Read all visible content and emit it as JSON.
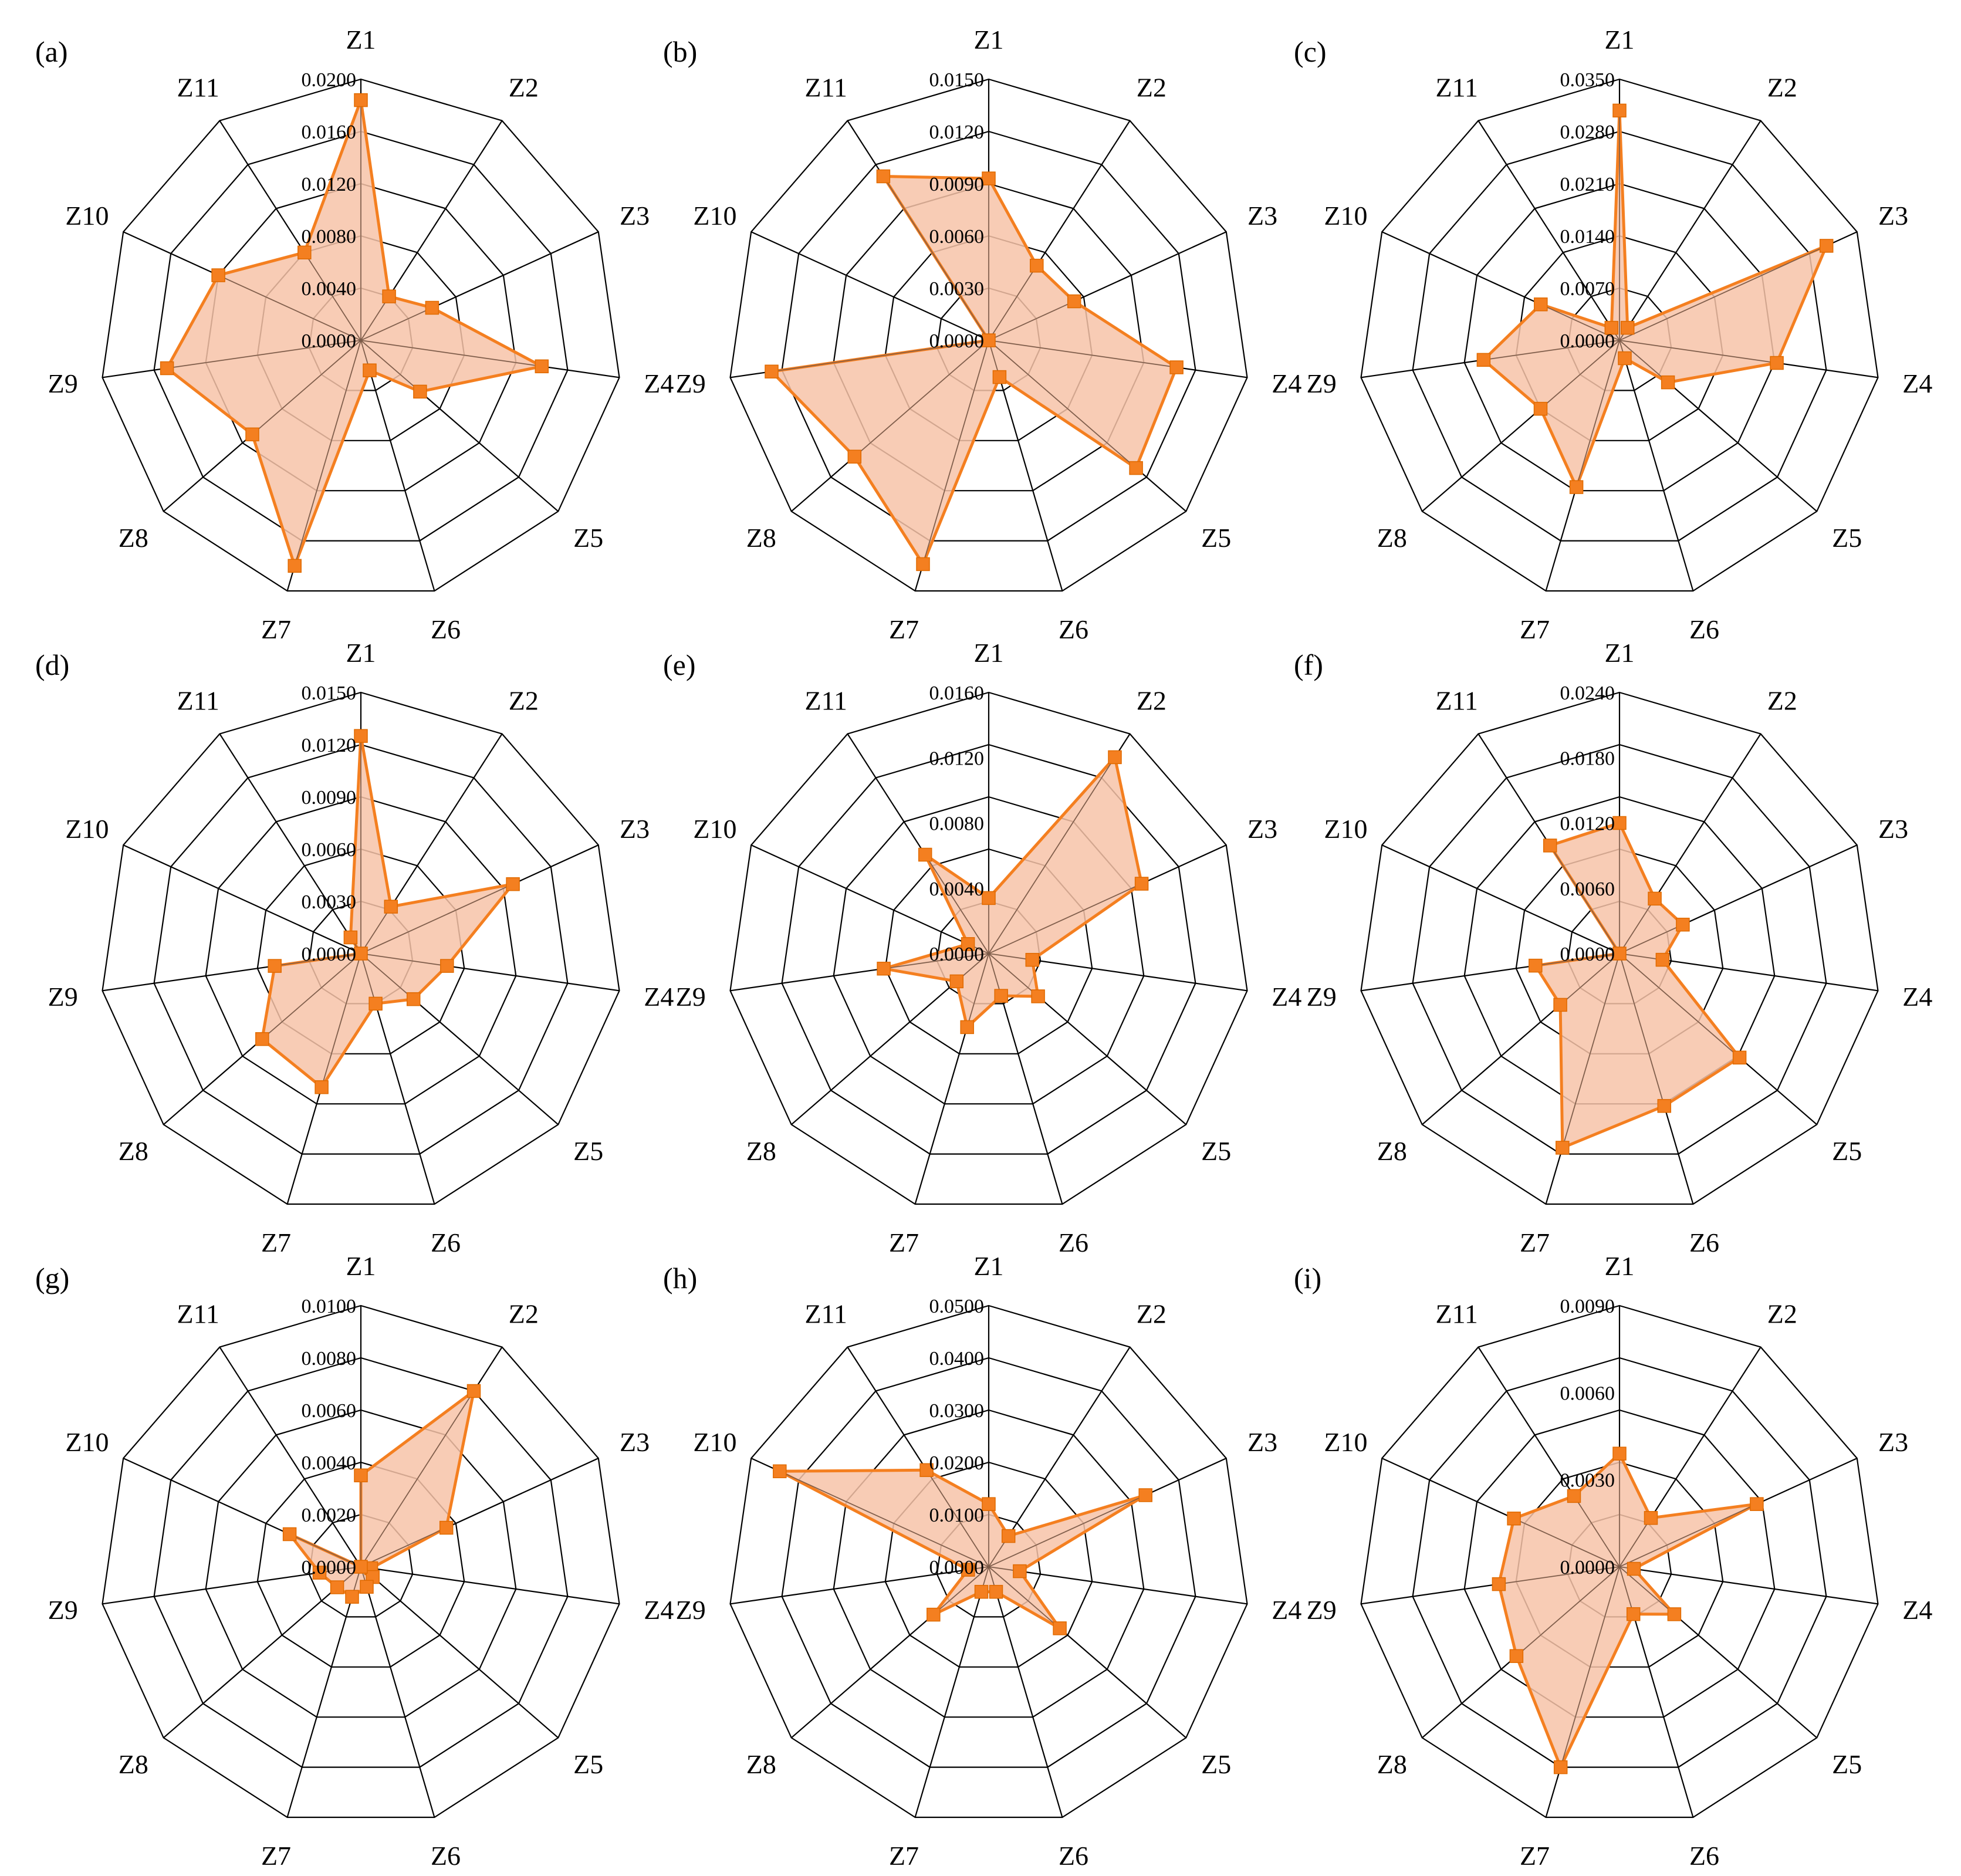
{
  "colors": {
    "line": "#f47f20",
    "fill": "#f7c3a8",
    "grid": "#000000"
  },
  "axes": [
    "Z1",
    "Z2",
    "Z3",
    "Z4",
    "Z5",
    "Z6",
    "Z7",
    "Z8",
    "Z9",
    "Z10",
    "Z11"
  ],
  "chart_data": [
    {
      "type": "radar",
      "panel": "(a)",
      "ticks": [
        "0.0000",
        "0.0040",
        "0.0080",
        "0.0120",
        "0.0160",
        "0.0200"
      ],
      "rmax": 0.02,
      "values": [
        0.0184,
        0.004,
        0.006,
        0.014,
        0.006,
        0.0024,
        0.018,
        0.011,
        0.015,
        0.012,
        0.008
      ]
    },
    {
      "type": "radar",
      "panel": "(b)",
      "ticks": [
        "0.0000",
        "0.0030",
        "0.0060",
        "0.0090",
        "0.0120",
        "0.0150"
      ],
      "rmax": 0.015,
      "values": [
        0.0093,
        0.0051,
        0.0054,
        0.0109,
        0.0112,
        0.0022,
        0.0134,
        0.0102,
        0.0126,
        0.0,
        0.0112
      ]
    },
    {
      "type": "radar",
      "panel": "(c)",
      "ticks": [
        "0.0000",
        "0.0070",
        "0.0140",
        "0.0210",
        "0.0280",
        "0.0350"
      ],
      "rmax": 0.035,
      "values": [
        0.0308,
        0.002,
        0.0305,
        0.0213,
        0.0086,
        0.0025,
        0.0205,
        0.014,
        0.0184,
        0.0116,
        0.002
      ]
    },
    {
      "type": "radar",
      "panel": "(d)",
      "ticks": [
        "0.0000",
        "0.0030",
        "0.0060",
        "0.0090",
        "0.0120",
        "0.0150"
      ],
      "rmax": 0.015,
      "values": [
        0.0125,
        0.0032,
        0.0096,
        0.005,
        0.004,
        0.003,
        0.008,
        0.0075,
        0.005,
        0.0,
        0.0011
      ]
    },
    {
      "type": "radar",
      "panel": "(e)",
      "ticks": [
        "0.0000",
        "0.0040",
        "0.0080",
        "0.0120",
        "0.0160"
      ],
      "rmax": 0.016,
      "values": [
        0.0034,
        0.0143,
        0.0103,
        0.0027,
        0.004,
        0.0027,
        0.0047,
        0.0026,
        0.0065,
        0.0014,
        0.0072
      ]
    },
    {
      "type": "radar",
      "panel": "(f)",
      "ticks": [
        "0.0000",
        "0.0060",
        "0.0120",
        "0.0180",
        "0.0240"
      ],
      "rmax": 0.024,
      "values": [
        0.012,
        0.006,
        0.0064,
        0.004,
        0.0146,
        0.0146,
        0.0186,
        0.0072,
        0.0078,
        0.0,
        0.0118
      ]
    },
    {
      "type": "radar",
      "panel": "(g)",
      "ticks": [
        "0.0000",
        "0.0020",
        "0.0040",
        "0.0060",
        "0.0080",
        "0.0100"
      ],
      "rmax": 0.01,
      "values": [
        0.0035,
        0.008,
        0.0036,
        0.0004,
        0.0006,
        0.0008,
        0.0012,
        0.0012,
        0.0016,
        0.003,
        0.0
      ]
    },
    {
      "type": "radar",
      "panel": "(h)",
      "ticks": [
        "0.0000",
        "0.0100",
        "0.0200",
        "0.0300",
        "0.0400",
        "0.0500"
      ],
      "rmax": 0.05,
      "values": [
        0.012,
        0.007,
        0.033,
        0.006,
        0.018,
        0.005,
        0.005,
        0.014,
        0.004,
        0.044,
        0.022
      ]
    },
    {
      "type": "radar",
      "panel": "(i)",
      "ticks": [
        "0.0000",
        "0.0030",
        "0.0060",
        "0.0090"
      ],
      "rmax": 0.009,
      "values": [
        0.0039,
        0.002,
        0.0052,
        0.0005,
        0.0025,
        0.0017,
        0.0072,
        0.0047,
        0.0042,
        0.004,
        0.0029
      ]
    }
  ]
}
